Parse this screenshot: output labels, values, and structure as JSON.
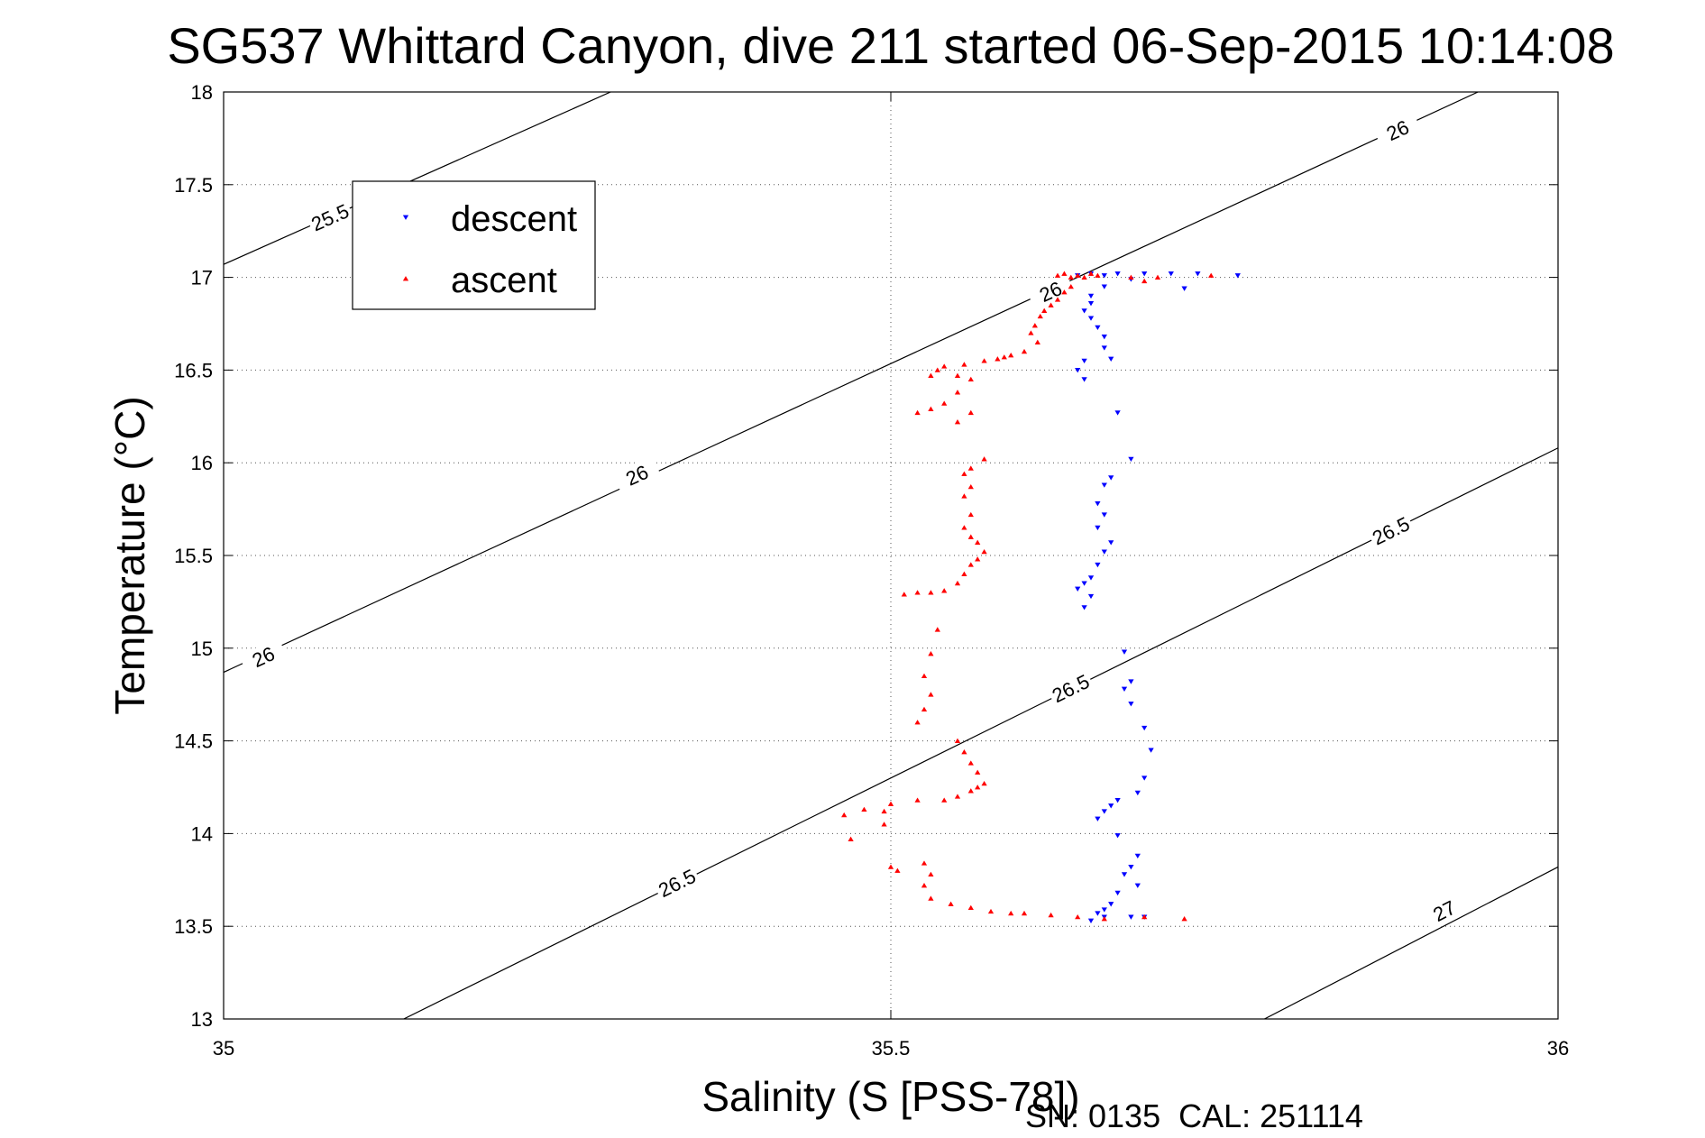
{
  "chart_data": {
    "type": "scatter",
    "title": "SG537 Whittard Canyon, dive 211 started 06-Sep-2015 10:14:08",
    "xlabel": "Salinity (S [PSS-78])",
    "ylabel": "Temperature (°C)",
    "xlim": [
      35,
      36
    ],
    "ylim": [
      13,
      18
    ],
    "x_ticks": [
      "35",
      "35.5",
      "36"
    ],
    "y_ticks": [
      "13",
      "13.5",
      "14",
      "14.5",
      "15",
      "15.5",
      "16",
      "16.5",
      "17",
      "17.5",
      "18"
    ],
    "grid": true,
    "legend_position": "top-left",
    "footer": "SN: 0135  CAL: 251114",
    "isopycnals": [
      {
        "label": "25.5",
        "points": [
          [
            35.0,
            17.07
          ],
          [
            35.29,
            18.0
          ]
        ],
        "label_positions": [
          [
            35.08,
            17.32
          ]
        ]
      },
      {
        "label": "26",
        "points": [
          [
            35.0,
            14.87
          ],
          [
            35.94,
            18.0
          ]
        ],
        "label_positions": [
          [
            35.03,
            14.95
          ],
          [
            35.31,
            15.93
          ],
          [
            35.62,
            16.92
          ],
          [
            35.88,
            17.79
          ]
        ]
      },
      {
        "label": "26.5",
        "points": [
          [
            35.135,
            13.0
          ],
          [
            36.0,
            16.08
          ]
        ],
        "label_positions": [
          [
            35.34,
            13.73
          ],
          [
            35.635,
            14.78
          ],
          [
            35.875,
            15.63
          ]
        ]
      },
      {
        "label": "27",
        "points": [
          [
            35.78,
            13.0
          ],
          [
            36.0,
            13.82
          ]
        ],
        "label_positions": [
          [
            35.915,
            13.58
          ]
        ]
      }
    ],
    "series": [
      {
        "name": "descent",
        "color": "#0000ff",
        "marker": "triangle-down",
        "points": [
          [
            35.64,
            17.01
          ],
          [
            35.65,
            17.02
          ],
          [
            35.66,
            17.01
          ],
          [
            35.67,
            17.02
          ],
          [
            35.69,
            17.02
          ],
          [
            35.71,
            17.02
          ],
          [
            35.73,
            17.02
          ],
          [
            35.76,
            17.01
          ],
          [
            35.72,
            16.94
          ],
          [
            35.68,
            16.99
          ],
          [
            35.66,
            16.95
          ],
          [
            35.65,
            16.9
          ],
          [
            35.65,
            16.86
          ],
          [
            35.645,
            16.82
          ],
          [
            35.65,
            16.78
          ],
          [
            35.655,
            16.73
          ],
          [
            35.66,
            16.68
          ],
          [
            35.66,
            16.62
          ],
          [
            35.665,
            16.56
          ],
          [
            35.645,
            16.55
          ],
          [
            35.64,
            16.5
          ],
          [
            35.645,
            16.45
          ],
          [
            35.67,
            16.27
          ],
          [
            35.68,
            16.02
          ],
          [
            35.665,
            15.92
          ],
          [
            35.66,
            15.88
          ],
          [
            35.655,
            15.78
          ],
          [
            35.66,
            15.72
          ],
          [
            35.655,
            15.65
          ],
          [
            35.665,
            15.57
          ],
          [
            35.66,
            15.52
          ],
          [
            35.655,
            15.45
          ],
          [
            35.65,
            15.38
          ],
          [
            35.645,
            15.35
          ],
          [
            35.64,
            15.32
          ],
          [
            35.65,
            15.28
          ],
          [
            35.645,
            15.22
          ],
          [
            35.675,
            14.98
          ],
          [
            35.68,
            14.82
          ],
          [
            35.675,
            14.78
          ],
          [
            35.68,
            14.7
          ],
          [
            35.69,
            14.57
          ],
          [
            35.695,
            14.45
          ],
          [
            35.69,
            14.3
          ],
          [
            35.685,
            14.22
          ],
          [
            35.67,
            14.18
          ],
          [
            35.665,
            14.15
          ],
          [
            35.66,
            14.12
          ],
          [
            35.655,
            14.08
          ],
          [
            35.67,
            13.99
          ],
          [
            35.685,
            13.88
          ],
          [
            35.68,
            13.82
          ],
          [
            35.675,
            13.78
          ],
          [
            35.685,
            13.72
          ],
          [
            35.67,
            13.68
          ],
          [
            35.665,
            13.62
          ],
          [
            35.66,
            13.59
          ],
          [
            35.655,
            13.57
          ],
          [
            35.66,
            13.55
          ],
          [
            35.68,
            13.55
          ],
          [
            35.69,
            13.55
          ],
          [
            35.65,
            13.53
          ]
        ]
      },
      {
        "name": "ascent",
        "color": "#ff0000",
        "marker": "triangle-up",
        "points": [
          [
            35.625,
            17.01
          ],
          [
            35.63,
            17.02
          ],
          [
            35.635,
            17.0
          ],
          [
            35.64,
            17.01
          ],
          [
            35.645,
            17.0
          ],
          [
            35.65,
            17.02
          ],
          [
            35.655,
            17.01
          ],
          [
            35.68,
            17.0
          ],
          [
            35.69,
            16.98
          ],
          [
            35.7,
            17.0
          ],
          [
            35.74,
            17.01
          ],
          [
            35.635,
            16.95
          ],
          [
            35.63,
            16.92
          ],
          [
            35.625,
            16.88
          ],
          [
            35.62,
            16.85
          ],
          [
            35.615,
            16.82
          ],
          [
            35.612,
            16.79
          ],
          [
            35.608,
            16.74
          ],
          [
            35.605,
            16.7
          ],
          [
            35.61,
            16.65
          ],
          [
            35.6,
            16.6
          ],
          [
            35.59,
            16.58
          ],
          [
            35.585,
            16.57
          ],
          [
            35.58,
            16.56
          ],
          [
            35.57,
            16.55
          ],
          [
            35.555,
            16.53
          ],
          [
            35.54,
            16.52
          ],
          [
            35.535,
            16.5
          ],
          [
            35.53,
            16.47
          ],
          [
            35.55,
            16.47
          ],
          [
            35.56,
            16.45
          ],
          [
            35.55,
            16.38
          ],
          [
            35.54,
            16.32
          ],
          [
            35.53,
            16.29
          ],
          [
            35.52,
            16.27
          ],
          [
            35.56,
            16.27
          ],
          [
            35.55,
            16.22
          ],
          [
            35.57,
            16.02
          ],
          [
            35.56,
            15.97
          ],
          [
            35.555,
            15.94
          ],
          [
            35.56,
            15.87
          ],
          [
            35.555,
            15.82
          ],
          [
            35.56,
            15.72
          ],
          [
            35.555,
            15.65
          ],
          [
            35.56,
            15.6
          ],
          [
            35.565,
            15.57
          ],
          [
            35.57,
            15.52
          ],
          [
            35.565,
            15.48
          ],
          [
            35.56,
            15.45
          ],
          [
            35.555,
            15.4
          ],
          [
            35.55,
            15.35
          ],
          [
            35.54,
            15.31
          ],
          [
            35.53,
            15.3
          ],
          [
            35.52,
            15.3
          ],
          [
            35.51,
            15.29
          ],
          [
            35.535,
            15.1
          ],
          [
            35.53,
            14.97
          ],
          [
            35.525,
            14.85
          ],
          [
            35.53,
            14.75
          ],
          [
            35.525,
            14.67
          ],
          [
            35.52,
            14.6
          ],
          [
            35.55,
            14.5
          ],
          [
            35.555,
            14.44
          ],
          [
            35.56,
            14.38
          ],
          [
            35.565,
            14.33
          ],
          [
            35.57,
            14.27
          ],
          [
            35.565,
            14.25
          ],
          [
            35.56,
            14.23
          ],
          [
            35.55,
            14.2
          ],
          [
            35.54,
            14.18
          ],
          [
            35.52,
            14.18
          ],
          [
            35.5,
            14.16
          ],
          [
            35.48,
            14.13
          ],
          [
            35.465,
            14.1
          ],
          [
            35.495,
            14.12
          ],
          [
            35.495,
            14.05
          ],
          [
            35.47,
            13.97
          ],
          [
            35.5,
            13.82
          ],
          [
            35.505,
            13.8
          ],
          [
            35.525,
            13.84
          ],
          [
            35.53,
            13.78
          ],
          [
            35.525,
            13.72
          ],
          [
            35.53,
            13.65
          ],
          [
            35.545,
            13.62
          ],
          [
            35.56,
            13.6
          ],
          [
            35.575,
            13.58
          ],
          [
            35.59,
            13.57
          ],
          [
            35.6,
            13.57
          ],
          [
            35.62,
            13.56
          ],
          [
            35.64,
            13.55
          ],
          [
            35.66,
            13.54
          ],
          [
            35.69,
            13.55
          ],
          [
            35.72,
            13.54
          ]
        ]
      }
    ]
  }
}
